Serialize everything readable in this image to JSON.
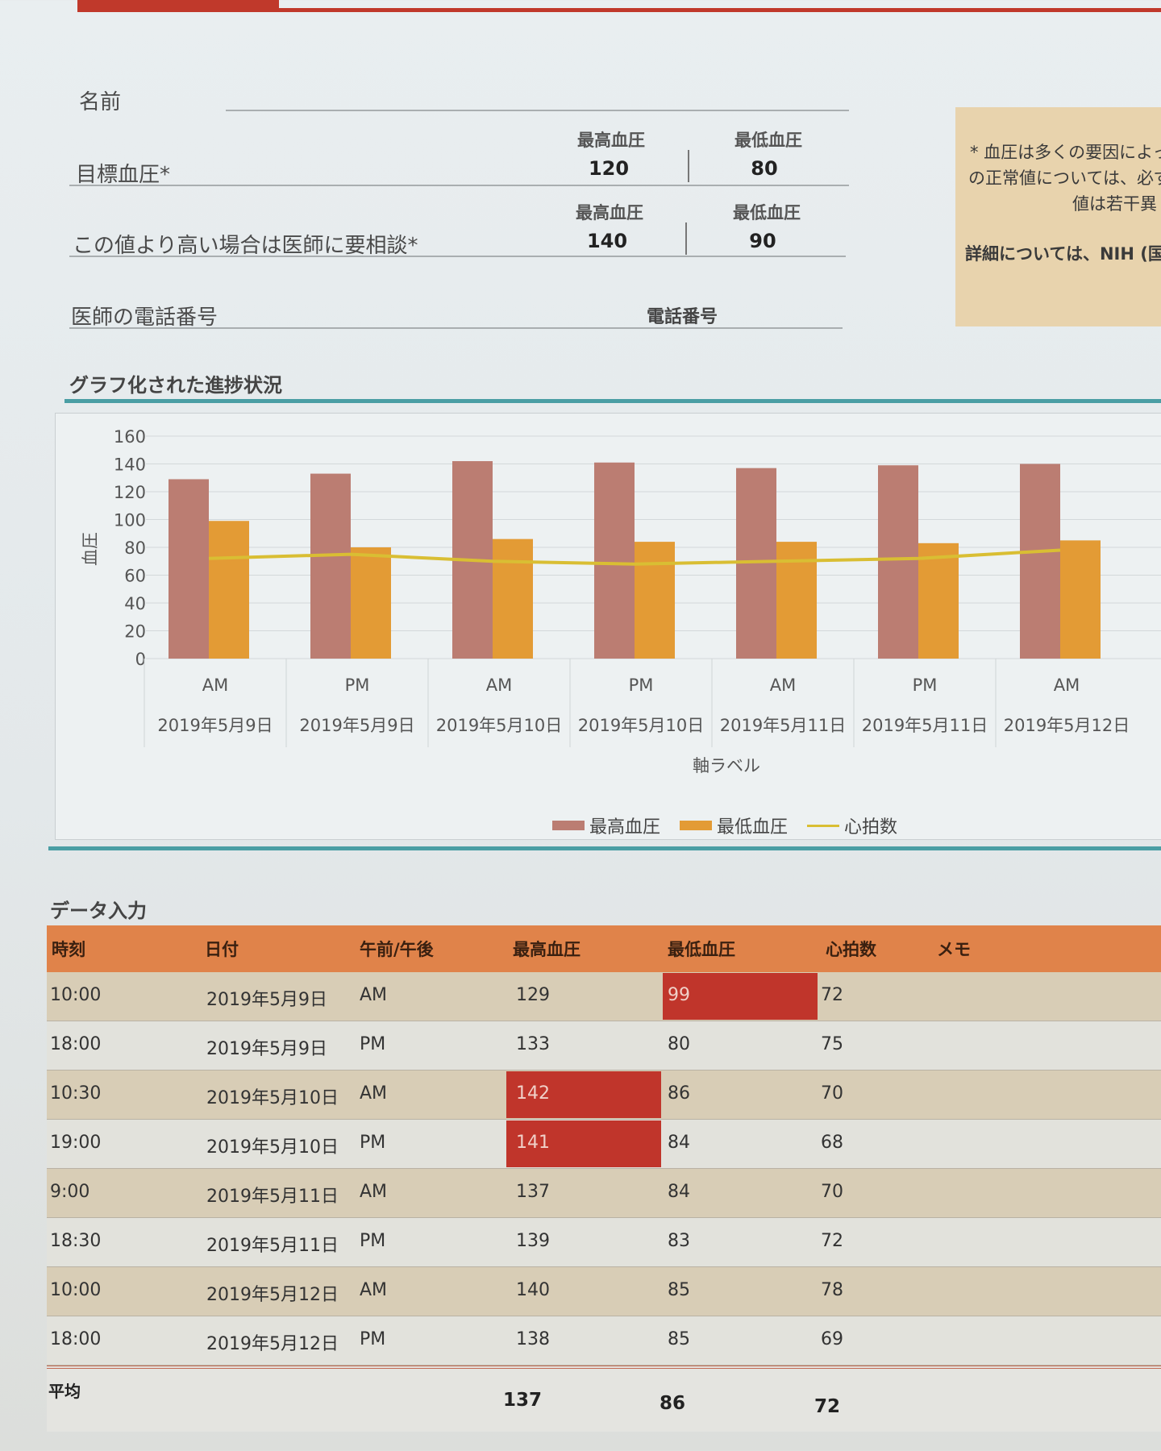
{
  "colors": {
    "accent_red": "#c0392b",
    "teal": "#4a9ea4",
    "systolic": "#bb7d72",
    "diastolic": "#e39b35",
    "pulse": "#d9be33",
    "table_header": "#e0834a",
    "alert": "#c0352b"
  },
  "form": {
    "name_label": "名前",
    "target_label": "目標血圧*",
    "consult_label": "この値より高い場合は医師に要相談*",
    "phone_label": "医師の電話番号",
    "phone_placeholder": "電話番号",
    "target": {
      "sys_head": "最高血圧",
      "sys_val": "120",
      "dia_head": "最低血圧",
      "dia_val": "80"
    },
    "consult": {
      "sys_head": "最高血圧",
      "sys_val": "140",
      "dia_head": "最低血圧",
      "dia_val": "90"
    }
  },
  "note": {
    "line1": "* 血圧は多くの要因によっ",
    "line2": "の正常値については、必ず",
    "line3": "値は若干異",
    "line4": "詳細については、NIH (国"
  },
  "chart_section_title": "グラフ化された進捗状況",
  "chart_data": {
    "type": "bar",
    "ylabel": "血圧",
    "xlabel": "軸ラベル",
    "ylim": [
      0,
      160
    ],
    "yticks": [
      "0",
      "20",
      "40",
      "60",
      "80",
      "100",
      "120",
      "140",
      "160"
    ],
    "categories": [
      {
        "ampm": "AM",
        "date": "2019年5月9日"
      },
      {
        "ampm": "PM",
        "date": "2019年5月9日"
      },
      {
        "ampm": "AM",
        "date": "2019年5月10日"
      },
      {
        "ampm": "PM",
        "date": "2019年5月10日"
      },
      {
        "ampm": "AM",
        "date": "2019年5月11日"
      },
      {
        "ampm": "PM",
        "date": "2019年5月11日"
      },
      {
        "ampm": "AM",
        "date": "2019年5月12日"
      }
    ],
    "series": [
      {
        "name": "最高血圧",
        "type": "bar",
        "values": [
          129,
          133,
          142,
          141,
          137,
          139,
          140
        ]
      },
      {
        "name": "最低血圧",
        "type": "bar",
        "values": [
          99,
          80,
          86,
          84,
          84,
          83,
          85
        ]
      },
      {
        "name": "心拍数",
        "type": "line",
        "values": [
          72,
          75,
          70,
          68,
          70,
          72,
          78
        ]
      }
    ],
    "legend": "bottom",
    "grid": true
  },
  "table": {
    "title": "データ入力",
    "headers": [
      "時刻",
      "日付",
      "午前/午後",
      "最高血圧",
      "最低血圧",
      "心拍数",
      "メモ"
    ],
    "rows": [
      {
        "time": "10:00",
        "date": "2019年5月9日",
        "ampm": "AM",
        "sys": "129",
        "dia": "99",
        "pulse": "72",
        "sys_alert": false,
        "dia_alert": true
      },
      {
        "time": "18:00",
        "date": "2019年5月9日",
        "ampm": "PM",
        "sys": "133",
        "dia": "80",
        "pulse": "75",
        "sys_alert": false,
        "dia_alert": false
      },
      {
        "time": "10:30",
        "date": "2019年5月10日",
        "ampm": "AM",
        "sys": "142",
        "dia": "86",
        "pulse": "70",
        "sys_alert": true,
        "dia_alert": false
      },
      {
        "time": "19:00",
        "date": "2019年5月10日",
        "ampm": "PM",
        "sys": "141",
        "dia": "84",
        "pulse": "68",
        "sys_alert": true,
        "dia_alert": false
      },
      {
        "time": "9:00",
        "date": "2019年5月11日",
        "ampm": "AM",
        "sys": "137",
        "dia": "84",
        "pulse": "70",
        "sys_alert": false,
        "dia_alert": false
      },
      {
        "time": "18:30",
        "date": "2019年5月11日",
        "ampm": "PM",
        "sys": "139",
        "dia": "83",
        "pulse": "72",
        "sys_alert": false,
        "dia_alert": false
      },
      {
        "time": "10:00",
        "date": "2019年5月12日",
        "ampm": "AM",
        "sys": "140",
        "dia": "85",
        "pulse": "78",
        "sys_alert": false,
        "dia_alert": false
      },
      {
        "time": "18:00",
        "date": "2019年5月12日",
        "ampm": "PM",
        "sys": "138",
        "dia": "85",
        "pulse": "69",
        "sys_alert": false,
        "dia_alert": false
      }
    ],
    "average": {
      "label": "平均",
      "sys": "137",
      "dia": "86",
      "pulse": "72"
    }
  }
}
